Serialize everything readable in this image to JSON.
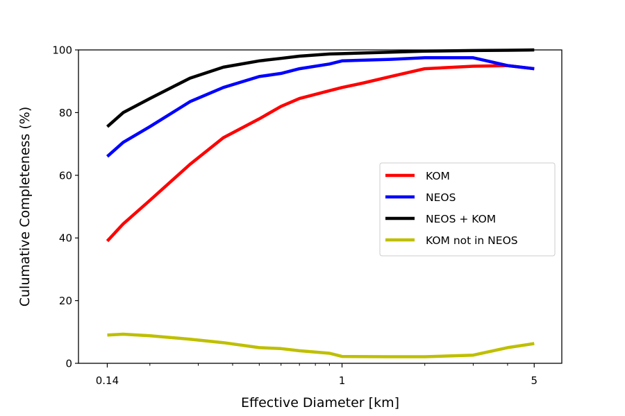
{
  "chart_data": {
    "type": "line",
    "xlabel": "Effective Diameter [km]",
    "ylabel": "Culumative Completeness (%)",
    "xscale": "log",
    "xlim": [
      0.11,
      6.3
    ],
    "ylim": [
      0,
      100
    ],
    "xticks": [
      {
        "value": 0.14,
        "label": "0.14"
      },
      {
        "value": 1,
        "label": "1"
      },
      {
        "value": 5,
        "label": "5"
      }
    ],
    "xminorticks": [
      0.2,
      0.3,
      0.4,
      0.5,
      0.6,
      0.7,
      0.8,
      0.9,
      2,
      3,
      4
    ],
    "yticks": [
      {
        "value": 0,
        "label": "0"
      },
      {
        "value": 20,
        "label": "20"
      },
      {
        "value": 40,
        "label": "40"
      },
      {
        "value": 60,
        "label": "60"
      },
      {
        "value": 80,
        "label": "80"
      },
      {
        "value": 100,
        "label": "100"
      }
    ],
    "grid": false,
    "legend": {
      "position": "center-right"
    },
    "series": [
      {
        "name": "KOM",
        "color": "#ff0000",
        "points": [
          [
            0.14,
            39
          ],
          [
            0.16,
            44.5
          ],
          [
            0.2,
            52
          ],
          [
            0.28,
            63.5
          ],
          [
            0.37,
            72
          ],
          [
            0.5,
            78
          ],
          [
            0.6,
            82
          ],
          [
            0.7,
            84.5
          ],
          [
            0.9,
            87
          ],
          [
            1.0,
            88
          ],
          [
            1.2,
            89.5
          ],
          [
            1.5,
            91.5
          ],
          [
            2.0,
            94
          ],
          [
            3.0,
            94.8
          ],
          [
            4.0,
            95
          ],
          [
            5.0,
            94
          ]
        ]
      },
      {
        "name": "NEOS",
        "color": "#0000ff",
        "points": [
          [
            0.14,
            66
          ],
          [
            0.16,
            70.5
          ],
          [
            0.2,
            75.5
          ],
          [
            0.28,
            83.5
          ],
          [
            0.37,
            88
          ],
          [
            0.5,
            91.5
          ],
          [
            0.6,
            92.5
          ],
          [
            0.7,
            94
          ],
          [
            0.9,
            95.5
          ],
          [
            1.0,
            96.5
          ],
          [
            1.5,
            97
          ],
          [
            2.0,
            97.5
          ],
          [
            3.0,
            97.5
          ],
          [
            4.0,
            95
          ],
          [
            5.0,
            94
          ]
        ]
      },
      {
        "name": "NEOS + KOM",
        "color": "#000000",
        "points": [
          [
            0.14,
            75.5
          ],
          [
            0.16,
            80
          ],
          [
            0.2,
            84.5
          ],
          [
            0.28,
            91
          ],
          [
            0.37,
            94.5
          ],
          [
            0.5,
            96.5
          ],
          [
            0.6,
            97.3
          ],
          [
            0.7,
            98
          ],
          [
            0.9,
            98.7
          ],
          [
            1.0,
            98.8
          ],
          [
            1.5,
            99.3
          ],
          [
            2.0,
            99.6
          ],
          [
            3.0,
            99.8
          ],
          [
            4.0,
            99.9
          ],
          [
            5.0,
            100
          ]
        ]
      },
      {
        "name": "KOM not in NEOS",
        "color": "#bfbf00",
        "points": [
          [
            0.14,
            9
          ],
          [
            0.16,
            9.3
          ],
          [
            0.2,
            8.8
          ],
          [
            0.28,
            7.7
          ],
          [
            0.37,
            6.6
          ],
          [
            0.5,
            5
          ],
          [
            0.6,
            4.7
          ],
          [
            0.7,
            4
          ],
          [
            0.9,
            3.2
          ],
          [
            1.0,
            2.2
          ],
          [
            1.5,
            2.1
          ],
          [
            2.0,
            2.1
          ],
          [
            3.0,
            2.6
          ],
          [
            4.0,
            5
          ],
          [
            5.0,
            6.3
          ]
        ]
      }
    ]
  }
}
